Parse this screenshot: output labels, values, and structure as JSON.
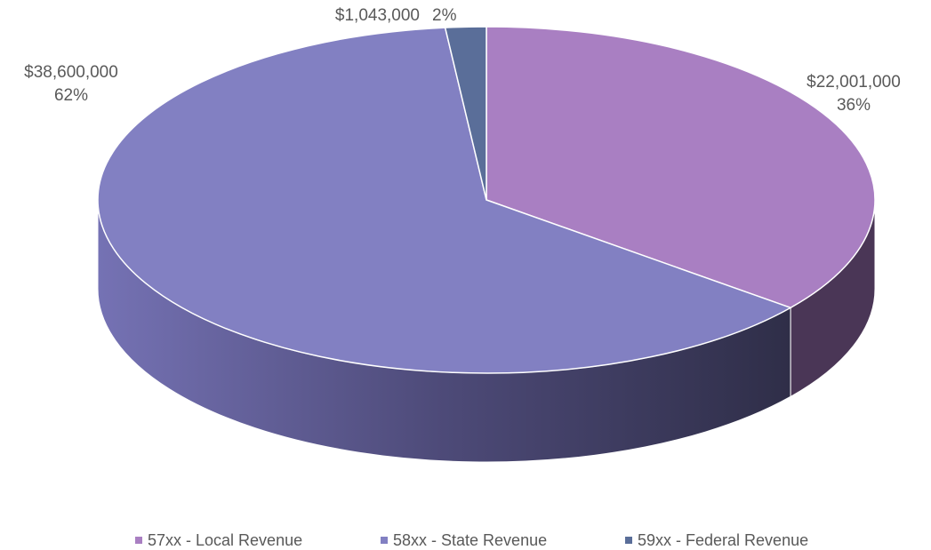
{
  "chart_data": {
    "type": "pie3d",
    "categories": [
      "57xx - Local Revenue",
      "58xx - State Revenue",
      "59xx - Federal Revenue"
    ],
    "values": [
      22001000,
      38600000,
      1043000
    ],
    "value_labels": [
      "$22,001,000",
      "$38,600,000",
      "$1,043,000"
    ],
    "percent_labels": [
      "36%",
      "62%",
      "2%"
    ],
    "colors": [
      "#a97fc2",
      "#8280c2",
      "#5a6e99"
    ],
    "legend": "bottom"
  }
}
